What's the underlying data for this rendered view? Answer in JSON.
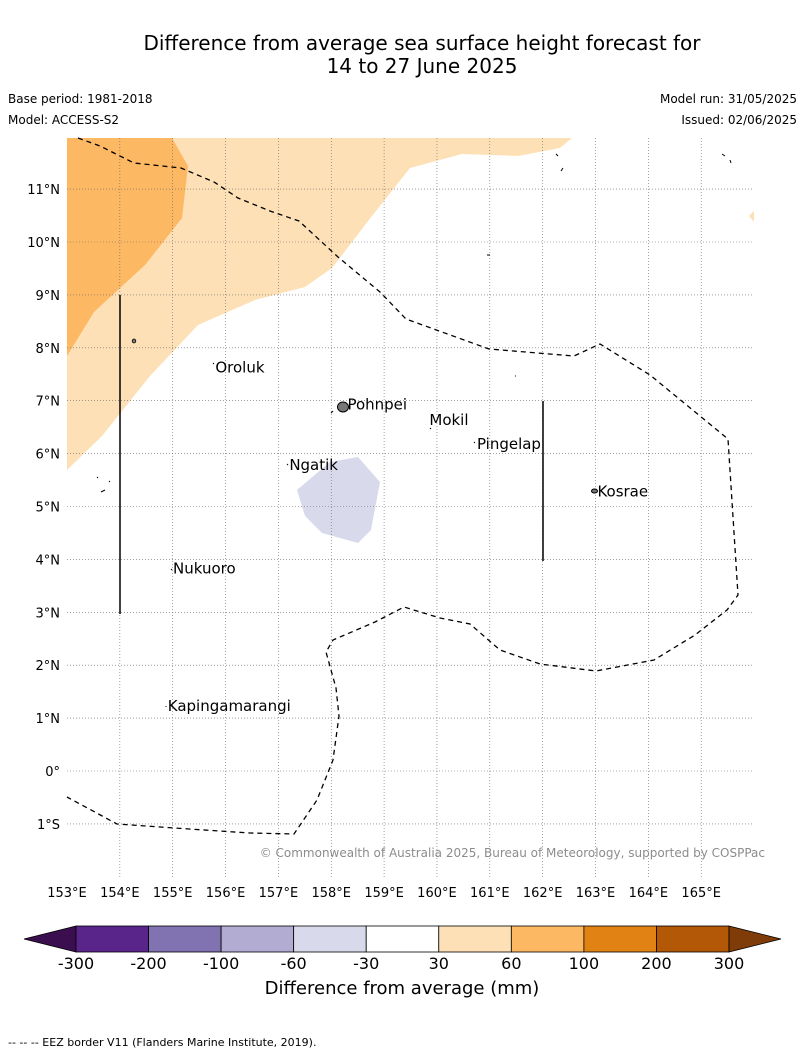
{
  "title_line1": "Difference from average sea surface height forecast for",
  "title_line2": "14 to 27 June 2025",
  "base_period": "Base period: 1981-2018",
  "model": "Model: ACCESS-S2",
  "model_run": "Model run: 31/05/2025",
  "issued": "Issued: 02/06/2025",
  "copyright": "© Commonwealth of Australia 2025, Bureau of Meteorology, supported by COSPPac",
  "map": {
    "lon_labels": [
      "153°E",
      "154°E",
      "155°E",
      "156°E",
      "157°E",
      "158°E",
      "159°E",
      "160°E",
      "161°E",
      "162°E",
      "163°E",
      "164°E",
      "165°E"
    ],
    "lat_labels": [
      "11°N",
      "10°N",
      "9°N",
      "8°N",
      "7°N",
      "6°N",
      "5°N",
      "4°N",
      "3°N",
      "2°N",
      "1°N",
      "0°",
      "1°S"
    ],
    "places": [
      {
        "name": "Oroluk",
        "lon": 155.75,
        "lat": 7.65
      },
      {
        "name": "Pohnpei",
        "lon": 158.25,
        "lat": 6.95
      },
      {
        "name": "Mokil",
        "lon": 159.8,
        "lat": 6.65
      },
      {
        "name": "Pingelap",
        "lon": 160.7,
        "lat": 6.2
      },
      {
        "name": "Ngatik",
        "lon": 157.15,
        "lat": 5.8
      },
      {
        "name": "Kosrae",
        "lon": 162.98,
        "lat": 5.3
      },
      {
        "name": "Nukuoro",
        "lon": 154.95,
        "lat": 3.85
      },
      {
        "name": "Kapingamarangi",
        "lon": 154.85,
        "lat": 1.25
      }
    ]
  },
  "colorbar": {
    "ticks": [
      "-300",
      "-200",
      "-100",
      "-60",
      "-30",
      "30",
      "60",
      "100",
      "200",
      "300"
    ],
    "colors": [
      "#3b0f4f",
      "#59258a",
      "#8172b2",
      "#b2abd2",
      "#d8daeb",
      "#ffffff",
      "#fee0b6",
      "#fdb863",
      "#e08214",
      "#b35806",
      "#7f3b08"
    ],
    "title": "Difference from average (mm)"
  },
  "footer": "--  --  -- EEZ border V11 (Flanders Marine Institute, 2019)."
}
